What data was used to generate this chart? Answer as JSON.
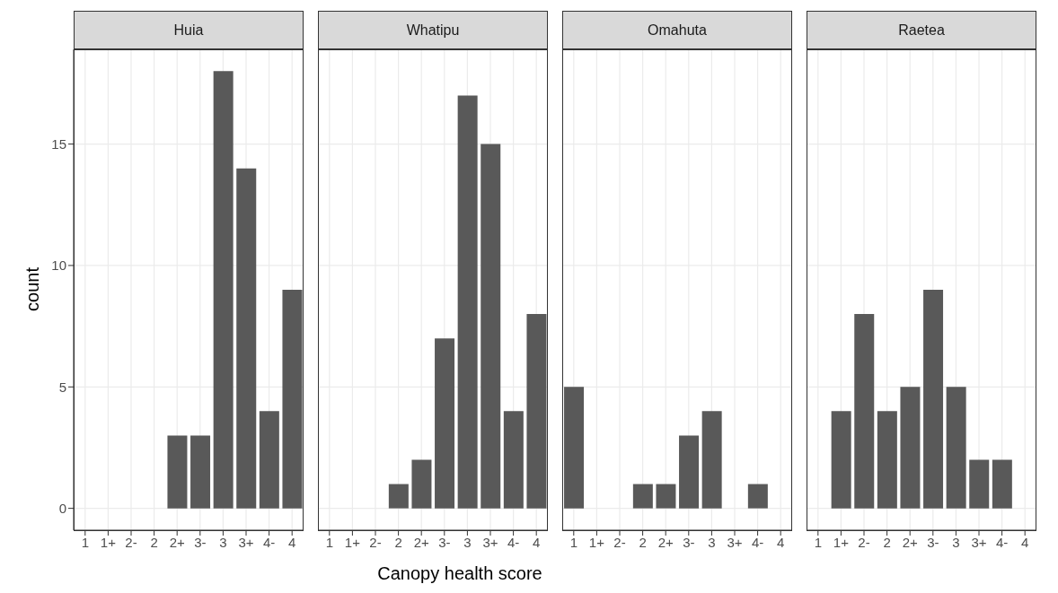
{
  "chart_data": [
    {
      "type": "bar",
      "title": "Huia",
      "ylabel": "count",
      "categories": [
        "1",
        "1+",
        "2-",
        "2",
        "2+",
        "3-",
        "3",
        "3+",
        "4-",
        "4"
      ],
      "values": [
        null,
        null,
        null,
        null,
        3,
        3,
        18,
        14,
        4,
        9
      ],
      "color": "#595959",
      "ylim": [
        -0.9,
        18.9
      ],
      "yticks": [
        0,
        5,
        10,
        15
      ],
      "grid": true
    },
    {
      "type": "bar",
      "title": "Whatipu",
      "xlabel": "Canopy health score",
      "categories": [
        "1",
        "1+",
        "2-",
        "2",
        "2+",
        "3-",
        "3",
        "3+",
        "4-",
        "4"
      ],
      "values": [
        null,
        null,
        null,
        1,
        2,
        7,
        17,
        15,
        4,
        8
      ],
      "color": "#595959",
      "ylim": [
        -0.9,
        18.9
      ],
      "yticks": [
        0,
        5,
        10,
        15
      ],
      "grid": true,
      "tick_labels": "x"
    },
    {
      "type": "bar",
      "title": "Omahuta",
      "categories": [
        "1",
        "1+",
        "2-",
        "2",
        "2+",
        "3-",
        "3",
        "3+",
        "4-",
        "4"
      ],
      "values": [
        5,
        null,
        null,
        1,
        1,
        3,
        4,
        null,
        1,
        null
      ],
      "color": "#595959",
      "ylim": [
        -0.9,
        18.9
      ],
      "yticks": [
        0,
        5,
        10,
        15
      ],
      "grid": true,
      "tick_labels": "x"
    },
    {
      "type": "bar",
      "title": "Raetea",
      "categories": [
        "1",
        "1+",
        "2-",
        "2",
        "2+",
        "3-",
        "3",
        "3+",
        "4-",
        "4"
      ],
      "values": [
        null,
        4,
        8,
        4,
        5,
        9,
        5,
        2,
        2,
        null
      ],
      "color": "#595959",
      "ylim": [
        -0.9,
        18.9
      ],
      "yticks": [
        0,
        5,
        10,
        15
      ],
      "grid": true,
      "tick_labels": "x"
    }
  ]
}
